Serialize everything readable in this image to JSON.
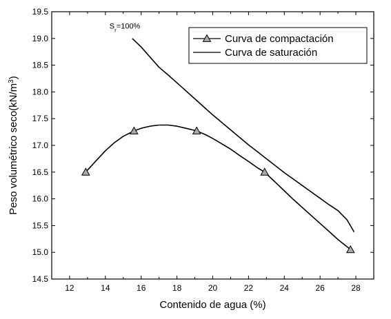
{
  "chart_data": {
    "type": "line",
    "xlabel": "Contenido de agua (%)",
    "ylabel_main": "Peso volumétrico seco(kN/m",
    "ylabel_sup": "3",
    "ylabel_close": ")",
    "xlim": [
      11,
      29
    ],
    "ylim": [
      14.5,
      19.5
    ],
    "xticks": [
      12,
      14,
      16,
      18,
      20,
      22,
      24,
      26,
      28
    ],
    "yticks": [
      14.5,
      15.0,
      15.5,
      16.0,
      16.5,
      17.0,
      17.5,
      18.0,
      18.5,
      19.0,
      19.5
    ],
    "grid": false,
    "legend_position": "top-right",
    "annotation": {
      "main": "S",
      "sub": "r",
      "rest": "=100%",
      "x": 15.0,
      "y": 19.13
    },
    "series": [
      {
        "name": "Curva de compactación",
        "marker": "triangle",
        "points": [
          [
            12.9,
            16.5
          ],
          [
            15.6,
            17.27
          ],
          [
            19.1,
            17.27
          ],
          [
            22.9,
            16.5
          ],
          [
            27.7,
            15.05
          ]
        ],
        "curve": [
          [
            12.9,
            16.5
          ],
          [
            13.5,
            16.72
          ],
          [
            14.0,
            16.9
          ],
          [
            14.5,
            17.05
          ],
          [
            15.0,
            17.17
          ],
          [
            15.6,
            17.27
          ],
          [
            16.0,
            17.32
          ],
          [
            16.5,
            17.36
          ],
          [
            17.0,
            17.38
          ],
          [
            17.5,
            17.38
          ],
          [
            18.0,
            17.36
          ],
          [
            18.5,
            17.32
          ],
          [
            19.1,
            17.27
          ],
          [
            19.6,
            17.2
          ],
          [
            20.0,
            17.13
          ],
          [
            20.5,
            17.03
          ],
          [
            21.0,
            16.93
          ],
          [
            21.5,
            16.81
          ],
          [
            22.0,
            16.7
          ],
          [
            22.5,
            16.58
          ],
          [
            22.9,
            16.5
          ],
          [
            23.5,
            16.31
          ],
          [
            24.0,
            16.15
          ],
          [
            24.5,
            15.99
          ],
          [
            25.0,
            15.84
          ],
          [
            25.5,
            15.69
          ],
          [
            26.0,
            15.54
          ],
          [
            26.5,
            15.39
          ],
          [
            27.0,
            15.24
          ],
          [
            27.7,
            15.05
          ]
        ]
      },
      {
        "name": "Curva de saturación",
        "curve": [
          [
            15.5,
            19.0
          ],
          [
            16.0,
            18.84
          ],
          [
            16.5,
            18.65
          ],
          [
            17.0,
            18.46
          ],
          [
            17.5,
            18.32
          ],
          [
            18.0,
            18.17
          ],
          [
            18.5,
            18.02
          ],
          [
            19.0,
            17.87
          ],
          [
            19.5,
            17.72
          ],
          [
            20.0,
            17.57
          ],
          [
            20.5,
            17.43
          ],
          [
            21.0,
            17.29
          ],
          [
            21.5,
            17.15
          ],
          [
            22.0,
            17.01
          ],
          [
            22.5,
            16.88
          ],
          [
            23.0,
            16.75
          ],
          [
            23.5,
            16.62
          ],
          [
            24.0,
            16.49
          ],
          [
            24.5,
            16.37
          ],
          [
            25.0,
            16.25
          ],
          [
            25.5,
            16.13
          ],
          [
            26.0,
            16.01
          ],
          [
            26.5,
            15.89
          ],
          [
            27.0,
            15.78
          ],
          [
            27.5,
            15.61
          ],
          [
            27.9,
            15.38
          ]
        ]
      }
    ]
  }
}
